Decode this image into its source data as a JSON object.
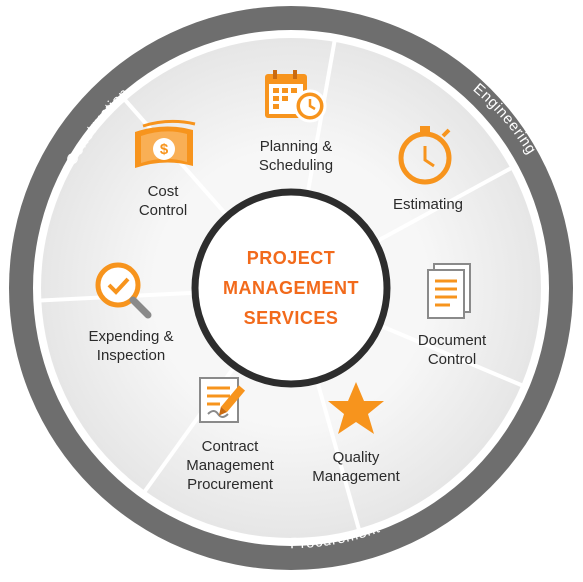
{
  "center": {
    "lines": [
      "PROJECT",
      "MANAGEMENT",
      "SERVICES"
    ],
    "color": "#f26a1b"
  },
  "ring": {
    "labels": {
      "construction": "Construction",
      "engineering": "Engineering",
      "procurement": "Procurement"
    }
  },
  "segments": [
    {
      "id": "planning",
      "lines": [
        "Planning &",
        "Scheduling"
      ],
      "icon": "calendar-clock-icon"
    },
    {
      "id": "estimating",
      "lines": [
        "Estimating"
      ],
      "icon": "stopwatch-icon"
    },
    {
      "id": "document",
      "lines": [
        "Document",
        "Control"
      ],
      "icon": "document-icon"
    },
    {
      "id": "quality",
      "lines": [
        "Quality",
        "Management"
      ],
      "icon": "star-icon"
    },
    {
      "id": "contract",
      "lines": [
        "Contract",
        "Management",
        "Procurement"
      ],
      "icon": "contract-pen-icon"
    },
    {
      "id": "expending",
      "lines": [
        "Expending &",
        "Inspection"
      ],
      "icon": "magnifier-check-icon"
    },
    {
      "id": "cost",
      "lines": [
        "Cost",
        "Control"
      ],
      "icon": "money-icon"
    }
  ],
  "colors": {
    "accent": "#f7941d",
    "accent_dark": "#f26a1b",
    "ring": "#6e6e6e",
    "segment": "#f0f0f0",
    "divider": "#ffffff"
  }
}
